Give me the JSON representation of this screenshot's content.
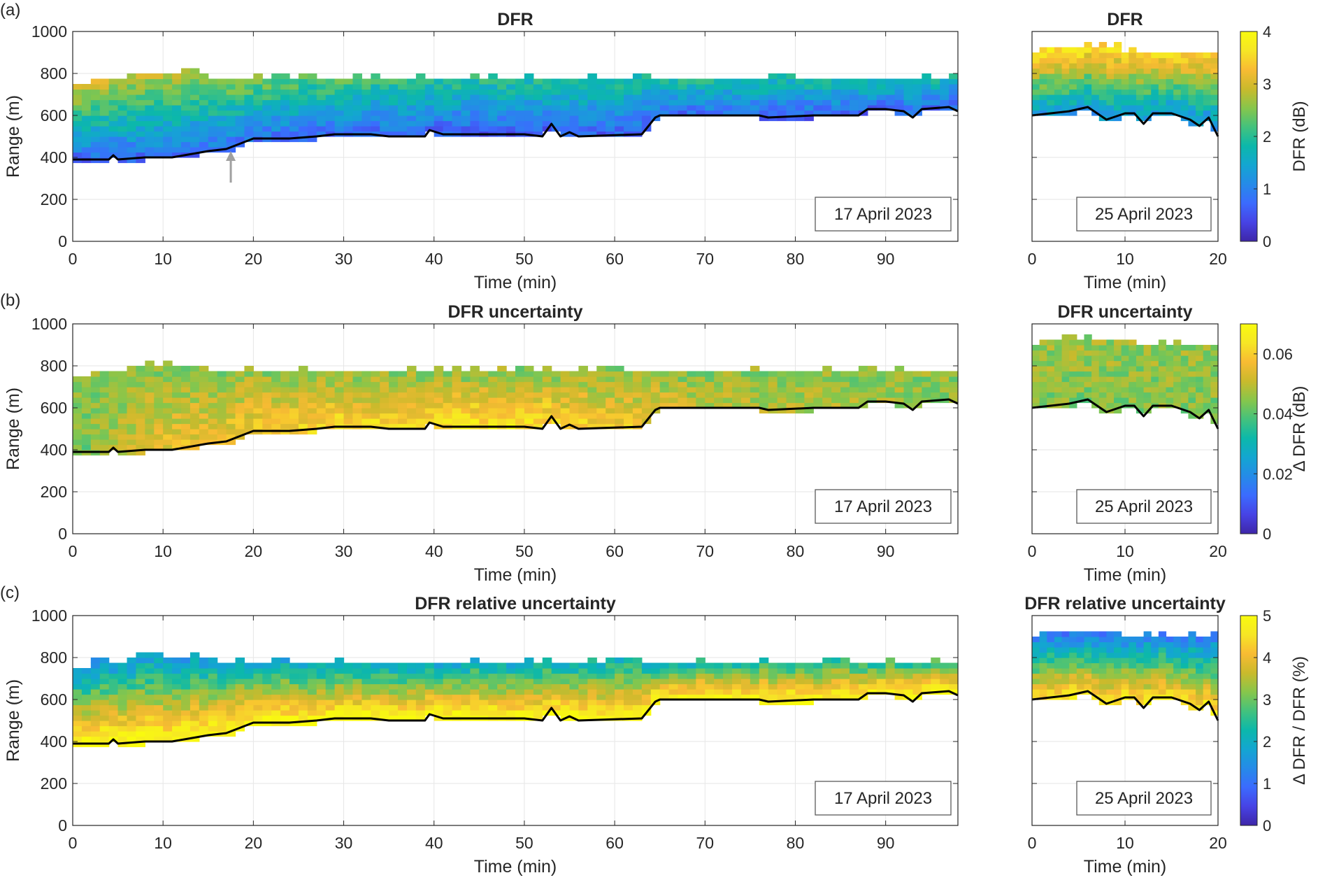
{
  "panel_labels": [
    "(a)",
    "(b)",
    "(c)"
  ],
  "colors": {
    "parula": [
      "#3E26A8",
      "#4743E5",
      "#3B6BFE",
      "#258BE8",
      "#13A6D1",
      "#0CB8AA",
      "#43C27D",
      "#87C64B",
      "#CABA2C",
      "#F8BB33",
      "#F6E625",
      "#F9FB0E"
    ],
    "cloud_base_line": "#000000",
    "arrow": "#A0A0A0",
    "grid": "#E6E6E6"
  },
  "chart_data": [
    {
      "type": "heatmap",
      "panel": "a",
      "date": "17 April 2023",
      "title": "DFR",
      "xlabel": "Time (min)",
      "ylabel": "Range (m)",
      "xlim": [
        0,
        98
      ],
      "ylim": [
        0,
        1000
      ],
      "xticks": [
        0,
        10,
        20,
        30,
        40,
        50,
        60,
        70,
        80,
        90
      ],
      "yticks": [
        0,
        200,
        400,
        600,
        800,
        1000
      ],
      "grid": true,
      "clim": [
        0,
        4
      ],
      "top_range": [
        [
          0,
          760
        ],
        [
          1,
          740
        ],
        [
          8,
          790
        ],
        [
          18,
          770
        ],
        [
          25,
          770
        ],
        [
          40,
          760
        ],
        [
          60,
          760
        ],
        [
          98,
          770
        ]
      ],
      "field_top": [
        [
          0,
          3.0
        ],
        [
          20,
          2.5
        ],
        [
          40,
          2.0
        ],
        [
          98,
          1.8
        ]
      ],
      "field_base": [
        [
          0,
          0.7
        ],
        [
          20,
          0.8
        ],
        [
          40,
          0.6
        ],
        [
          98,
          0.7
        ]
      ],
      "cloud_base": [
        [
          0,
          390
        ],
        [
          4,
          390
        ],
        [
          4.5,
          410
        ],
        [
          5,
          390
        ],
        [
          8,
          400
        ],
        [
          11,
          400
        ],
        [
          15,
          430
        ],
        [
          17,
          440
        ],
        [
          20,
          490
        ],
        [
          24,
          490
        ],
        [
          27,
          500
        ],
        [
          29,
          510
        ],
        [
          33,
          510
        ],
        [
          35,
          500
        ],
        [
          39,
          500
        ],
        [
          39.5,
          530
        ],
        [
          41,
          510
        ],
        [
          50,
          510
        ],
        [
          52,
          500
        ],
        [
          53,
          560
        ],
        [
          54,
          500
        ],
        [
          55,
          520
        ],
        [
          56,
          500
        ],
        [
          63,
          510
        ],
        [
          64.5,
          590
        ],
        [
          65,
          600
        ],
        [
          76,
          600
        ],
        [
          77,
          590
        ],
        [
          82,
          600
        ],
        [
          87,
          600
        ],
        [
          88,
          630
        ],
        [
          90,
          630
        ],
        [
          92,
          620
        ],
        [
          93,
          590
        ],
        [
          94,
          630
        ],
        [
          97,
          640
        ],
        [
          98,
          620
        ]
      ],
      "annotation_arrow": {
        "x": 17.5,
        "y_from": 280,
        "y_to": 430
      }
    },
    {
      "type": "heatmap",
      "panel": "a",
      "date": "25 April 2023",
      "title": "DFR",
      "xlabel": "Time (min)",
      "xlim": [
        0,
        20
      ],
      "ylim": [
        0,
        1000
      ],
      "xticks": [
        0,
        10,
        20
      ],
      "grid": true,
      "clim": [
        0,
        4
      ],
      "colorbar": {
        "label": "DFR (dB)",
        "ticks": [
          "0",
          "1",
          "2",
          "3",
          "4"
        ],
        "values": [
          0,
          1,
          2,
          3,
          4
        ]
      },
      "top_range": [
        [
          0,
          880
        ],
        [
          1,
          910
        ],
        [
          10,
          900
        ],
        [
          20,
          890
        ]
      ],
      "field_top": [
        [
          0,
          3.6
        ],
        [
          20,
          3.5
        ]
      ],
      "field_base": [
        [
          0,
          1.3
        ],
        [
          20,
          1.2
        ]
      ],
      "cloud_base": [
        [
          0,
          600
        ],
        [
          2,
          610
        ],
        [
          4,
          620
        ],
        [
          6,
          640
        ],
        [
          8,
          580
        ],
        [
          10,
          610
        ],
        [
          11,
          610
        ],
        [
          12,
          560
        ],
        [
          13,
          610
        ],
        [
          15,
          610
        ],
        [
          17,
          580
        ],
        [
          18,
          550
        ],
        [
          19,
          590
        ],
        [
          20,
          500
        ]
      ]
    },
    {
      "type": "heatmap",
      "panel": "b",
      "date": "17 April 2023",
      "title": "DFR uncertainty",
      "xlabel": "Time (min)",
      "ylabel": "Range (m)",
      "xlim": [
        0,
        98
      ],
      "ylim": [
        0,
        1000
      ],
      "xticks": [
        0,
        10,
        20,
        30,
        40,
        50,
        60,
        70,
        80,
        90
      ],
      "yticks": [
        0,
        200,
        400,
        600,
        800,
        1000
      ],
      "grid": true,
      "clim": [
        0,
        0.07
      ],
      "top_range": [
        [
          0,
          760
        ],
        [
          1,
          740
        ],
        [
          8,
          790
        ],
        [
          18,
          770
        ],
        [
          25,
          770
        ],
        [
          40,
          760
        ],
        [
          60,
          760
        ],
        [
          98,
          770
        ]
      ],
      "field_top": [
        [
          0,
          0.045
        ],
        [
          98,
          0.045
        ]
      ],
      "field_base": [
        [
          0,
          0.04
        ],
        [
          8,
          0.055
        ],
        [
          30,
          0.062
        ],
        [
          48,
          0.065
        ],
        [
          62,
          0.058
        ],
        [
          70,
          0.05
        ],
        [
          98,
          0.046
        ]
      ],
      "cloud_base": [
        [
          0,
          390
        ],
        [
          4,
          390
        ],
        [
          4.5,
          410
        ],
        [
          5,
          390
        ],
        [
          8,
          400
        ],
        [
          11,
          400
        ],
        [
          15,
          430
        ],
        [
          17,
          440
        ],
        [
          20,
          490
        ],
        [
          24,
          490
        ],
        [
          27,
          500
        ],
        [
          29,
          510
        ],
        [
          33,
          510
        ],
        [
          35,
          500
        ],
        [
          39,
          500
        ],
        [
          39.5,
          530
        ],
        [
          41,
          510
        ],
        [
          50,
          510
        ],
        [
          52,
          500
        ],
        [
          53,
          560
        ],
        [
          54,
          500
        ],
        [
          55,
          520
        ],
        [
          56,
          500
        ],
        [
          63,
          510
        ],
        [
          64.5,
          590
        ],
        [
          65,
          600
        ],
        [
          76,
          600
        ],
        [
          77,
          590
        ],
        [
          82,
          600
        ],
        [
          87,
          600
        ],
        [
          88,
          630
        ],
        [
          90,
          630
        ],
        [
          92,
          620
        ],
        [
          93,
          590
        ],
        [
          94,
          630
        ],
        [
          97,
          640
        ],
        [
          98,
          620
        ]
      ]
    },
    {
      "type": "heatmap",
      "panel": "b",
      "date": "25 April 2023",
      "title": "DFR uncertainty",
      "xlabel": "Time (min)",
      "xlim": [
        0,
        20
      ],
      "ylim": [
        0,
        1000
      ],
      "xticks": [
        0,
        10,
        20
      ],
      "grid": true,
      "clim": [
        0,
        0.07
      ],
      "colorbar": {
        "label": "Δ DFR (dB)",
        "ticks": [
          "0",
          "0.02",
          "0.04",
          "0.06"
        ],
        "values": [
          0,
          0.02,
          0.04,
          0.06
        ]
      },
      "top_range": [
        [
          0,
          880
        ],
        [
          1,
          910
        ],
        [
          10,
          900
        ],
        [
          20,
          890
        ]
      ],
      "field_top": [
        [
          0,
          0.046
        ],
        [
          20,
          0.046
        ]
      ],
      "field_base": [
        [
          0,
          0.044
        ],
        [
          20,
          0.044
        ]
      ],
      "cloud_base": [
        [
          0,
          600
        ],
        [
          2,
          610
        ],
        [
          4,
          620
        ],
        [
          6,
          640
        ],
        [
          8,
          580
        ],
        [
          10,
          610
        ],
        [
          11,
          610
        ],
        [
          12,
          560
        ],
        [
          13,
          610
        ],
        [
          15,
          610
        ],
        [
          17,
          580
        ],
        [
          18,
          550
        ],
        [
          19,
          590
        ],
        [
          20,
          500
        ]
      ]
    },
    {
      "type": "heatmap",
      "panel": "c",
      "date": "17 April 2023",
      "title": "DFR relative uncertainty",
      "xlabel": "Time (min)",
      "ylabel": "Range (m)",
      "xlim": [
        0,
        98
      ],
      "ylim": [
        0,
        1000
      ],
      "xticks": [
        0,
        10,
        20,
        30,
        40,
        50,
        60,
        70,
        80,
        90
      ],
      "yticks": [
        0,
        200,
        400,
        600,
        800,
        1000
      ],
      "grid": true,
      "clim": [
        0,
        5
      ],
      "top_range": [
        [
          0,
          760
        ],
        [
          1,
          740
        ],
        [
          8,
          790
        ],
        [
          18,
          770
        ],
        [
          25,
          770
        ],
        [
          40,
          760
        ],
        [
          60,
          760
        ],
        [
          98,
          770
        ]
      ],
      "field_top": [
        [
          0,
          1.6
        ],
        [
          98,
          2.6
        ]
      ],
      "field_base": [
        [
          0,
          5.0
        ],
        [
          98,
          5.0
        ]
      ],
      "cloud_base": [
        [
          0,
          390
        ],
        [
          4,
          390
        ],
        [
          4.5,
          410
        ],
        [
          5,
          390
        ],
        [
          8,
          400
        ],
        [
          11,
          400
        ],
        [
          15,
          430
        ],
        [
          17,
          440
        ],
        [
          20,
          490
        ],
        [
          24,
          490
        ],
        [
          27,
          500
        ],
        [
          29,
          510
        ],
        [
          33,
          510
        ],
        [
          35,
          500
        ],
        [
          39,
          500
        ],
        [
          39.5,
          530
        ],
        [
          41,
          510
        ],
        [
          50,
          510
        ],
        [
          52,
          500
        ],
        [
          53,
          560
        ],
        [
          54,
          500
        ],
        [
          55,
          520
        ],
        [
          56,
          500
        ],
        [
          63,
          510
        ],
        [
          64.5,
          590
        ],
        [
          65,
          600
        ],
        [
          76,
          600
        ],
        [
          77,
          590
        ],
        [
          82,
          600
        ],
        [
          87,
          600
        ],
        [
          88,
          630
        ],
        [
          90,
          630
        ],
        [
          92,
          620
        ],
        [
          93,
          590
        ],
        [
          94,
          630
        ],
        [
          97,
          640
        ],
        [
          98,
          620
        ]
      ]
    },
    {
      "type": "heatmap",
      "panel": "c",
      "date": "25 April 2023",
      "title": "DFR relative uncertainty",
      "xlabel": "Time (min)",
      "xlim": [
        0,
        20
      ],
      "ylim": [
        0,
        1000
      ],
      "xticks": [
        0,
        10,
        20
      ],
      "grid": true,
      "clim": [
        0,
        5
      ],
      "colorbar": {
        "label": "Δ DFR / DFR (%)",
        "ticks": [
          "0",
          "1",
          "2",
          "3",
          "4",
          "5"
        ],
        "values": [
          0,
          1,
          2,
          3,
          4,
          5
        ]
      },
      "top_range": [
        [
          0,
          880
        ],
        [
          1,
          910
        ],
        [
          10,
          900
        ],
        [
          20,
          890
        ]
      ],
      "field_top": [
        [
          0,
          1.2
        ],
        [
          20,
          1.2
        ]
      ],
      "field_base": [
        [
          0,
          4.6
        ],
        [
          20,
          4.6
        ]
      ],
      "cloud_base": [
        [
          0,
          600
        ],
        [
          2,
          610
        ],
        [
          4,
          620
        ],
        [
          6,
          640
        ],
        [
          8,
          580
        ],
        [
          10,
          610
        ],
        [
          11,
          610
        ],
        [
          12,
          560
        ],
        [
          13,
          610
        ],
        [
          15,
          610
        ],
        [
          17,
          580
        ],
        [
          18,
          550
        ],
        [
          19,
          590
        ],
        [
          20,
          500
        ]
      ]
    }
  ]
}
